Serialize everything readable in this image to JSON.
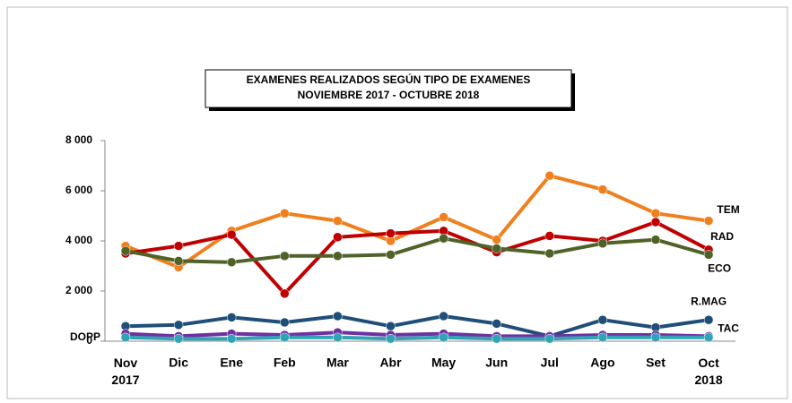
{
  "chart_data": {
    "type": "line",
    "title": "EXAMENES  REALIZADOS SEGÚN TIPO DE EXAMENES",
    "subtitle": "NOVIEMBRE  2017 - OCTUBRE  2018",
    "categories": [
      "Nov 2017",
      "Dic",
      "Ene",
      "Feb",
      "Mar",
      "Abr",
      "May",
      "Jun",
      "Jul",
      "Ago",
      "Set",
      "Oct 2018"
    ],
    "ylim": [
      0,
      8000
    ],
    "yticks": [
      0,
      {
        "value": 2000,
        "label": "2 000"
      },
      {
        "value": 4000,
        "label": "4 000"
      },
      {
        "value": 6000,
        "label": "6 000"
      },
      {
        "value": 8000,
        "label": "8 000"
      }
    ],
    "grid": false,
    "series": [
      {
        "name": "TEM",
        "color": "#f07f1e",
        "values": [
          3800,
          2950,
          4400,
          5100,
          4800,
          4000,
          4950,
          4050,
          6600,
          6050,
          5100,
          4800
        ]
      },
      {
        "name": "RAD",
        "color": "#c00000",
        "values": [
          3500,
          3800,
          4250,
          1900,
          4150,
          4300,
          4400,
          3550,
          4200,
          4000,
          4750,
          3650
        ]
      },
      {
        "name": "ECO",
        "color": "#4f6228",
        "values": [
          3600,
          3200,
          3150,
          3400,
          3400,
          3450,
          4100,
          3700,
          3500,
          3900,
          4050,
          3450
        ]
      },
      {
        "name": "R.MAG",
        "color": "#1f4e79",
        "values": [
          600,
          650,
          950,
          750,
          1000,
          600,
          1000,
          700,
          200,
          850,
          550,
          850
        ]
      },
      {
        "name": "TAC",
        "color": "#7030a0",
        "values": [
          300,
          200,
          300,
          250,
          350,
          250,
          300,
          200,
          200,
          250,
          250,
          200
        ]
      },
      {
        "name": "DOPP",
        "color": "#31a3b5",
        "values": [
          150,
          100,
          100,
          150,
          150,
          100,
          150,
          100,
          100,
          150,
          150,
          150
        ]
      }
    ]
  }
}
